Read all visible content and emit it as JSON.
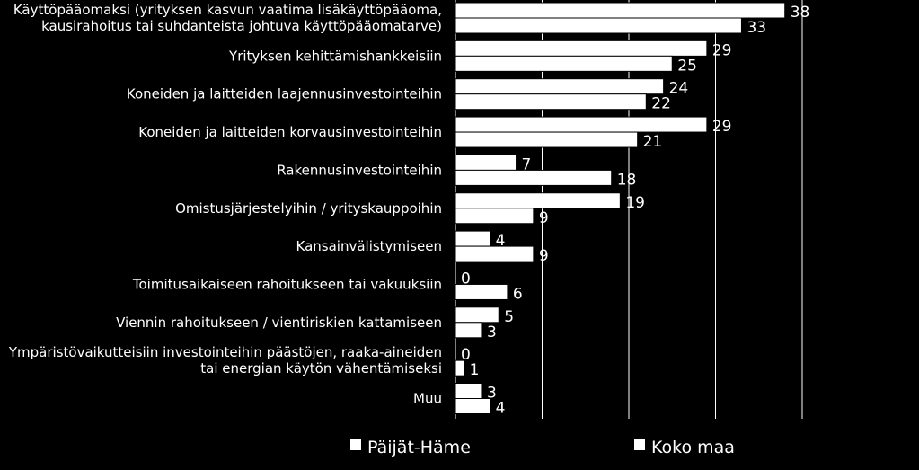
{
  "chart_data": {
    "type": "bar",
    "orientation": "horizontal",
    "categories": [
      [
        "Käyttöpääomaksi (yrityksen kasvun vaatima lisäkäyttöpääoma,",
        "kausirahoitus tai suhdanteista johtuva käyttöpääomatarve)"
      ],
      [
        "Yrityksen kehittämishankkeisiin"
      ],
      [
        "Koneiden ja laitteiden laajennusinvestointeihin"
      ],
      [
        "Koneiden ja laitteiden korvausinvestointeihin"
      ],
      [
        "Rakennusinvestointeihin"
      ],
      [
        "Omistusjärjestelyihin / yrityskauppoihin"
      ],
      [
        "Kansainvälistymiseen"
      ],
      [
        "Toimitusaikaiseen rahoitukseen tai vakuuksiin"
      ],
      [
        "Viennin rahoitukseen / vientiriskien kattamiseen"
      ],
      [
        "Ympäristövaikutteisiin investointeihin päästöjen, raaka-aineiden",
        "tai energian käytön vähentämiseksi"
      ],
      [
        "Muu"
      ]
    ],
    "series": [
      {
        "name": "Päijät-Häme",
        "values": [
          38,
          29,
          24,
          29,
          7,
          19,
          4,
          0,
          5,
          0,
          3
        ]
      },
      {
        "name": "Koko maa",
        "values": [
          33,
          25,
          22,
          21,
          18,
          9,
          9,
          6,
          3,
          1,
          4
        ]
      }
    ],
    "xlim": [
      0,
      40
    ],
    "grid": true,
    "legend_position": "bottom",
    "title": "",
    "xlabel": "",
    "ylabel": ""
  },
  "colors": {
    "background": "#000000",
    "bar_fill": "#ffffff",
    "bar_stroke": "#000000",
    "gridline": "#ffffff",
    "text": "#ffffff"
  }
}
